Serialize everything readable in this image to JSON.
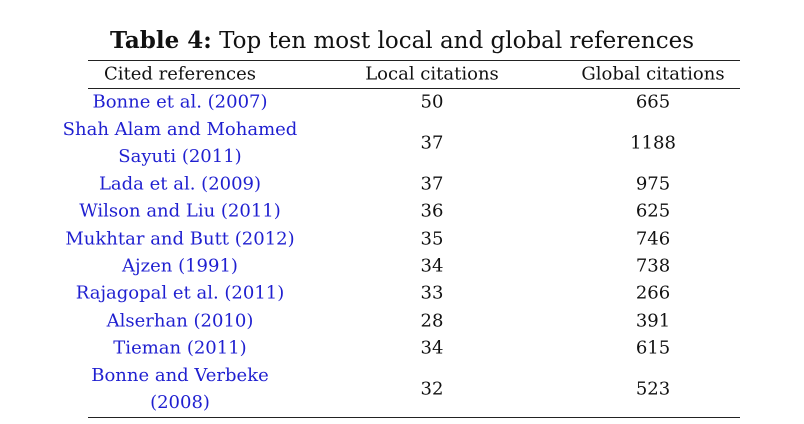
{
  "table": {
    "caption_label": "Table 4:",
    "caption_text": "Top ten most local and global references",
    "columns": [
      "Cited references",
      "Local citations",
      "Global citations"
    ],
    "rows": [
      [
        [
          "Bonne et al. (2007)"
        ],
        "50",
        "665"
      ],
      [
        [
          "Shah Alam and Mohamed",
          "Sayuti (2011)"
        ],
        "37",
        "1188"
      ],
      [
        [
          "Lada et al. (2009)"
        ],
        "37",
        "975"
      ],
      [
        [
          "Wilson and Liu (2011)"
        ],
        "36",
        "625"
      ],
      [
        [
          "Mukhtar and Butt (2012)"
        ],
        "35",
        "746"
      ],
      [
        [
          "Ajzen (1991)"
        ],
        "34",
        "738"
      ],
      [
        [
          "Rajagopal et al. (2011)"
        ],
        "33",
        "266"
      ],
      [
        [
          "Alserhan (2010)"
        ],
        "28",
        "391"
      ],
      [
        [
          "Tieman (2011)"
        ],
        "34",
        "615"
      ],
      [
        [
          "Bonne and Verbeke",
          "(2008)"
        ],
        "32",
        "523"
      ]
    ]
  }
}
